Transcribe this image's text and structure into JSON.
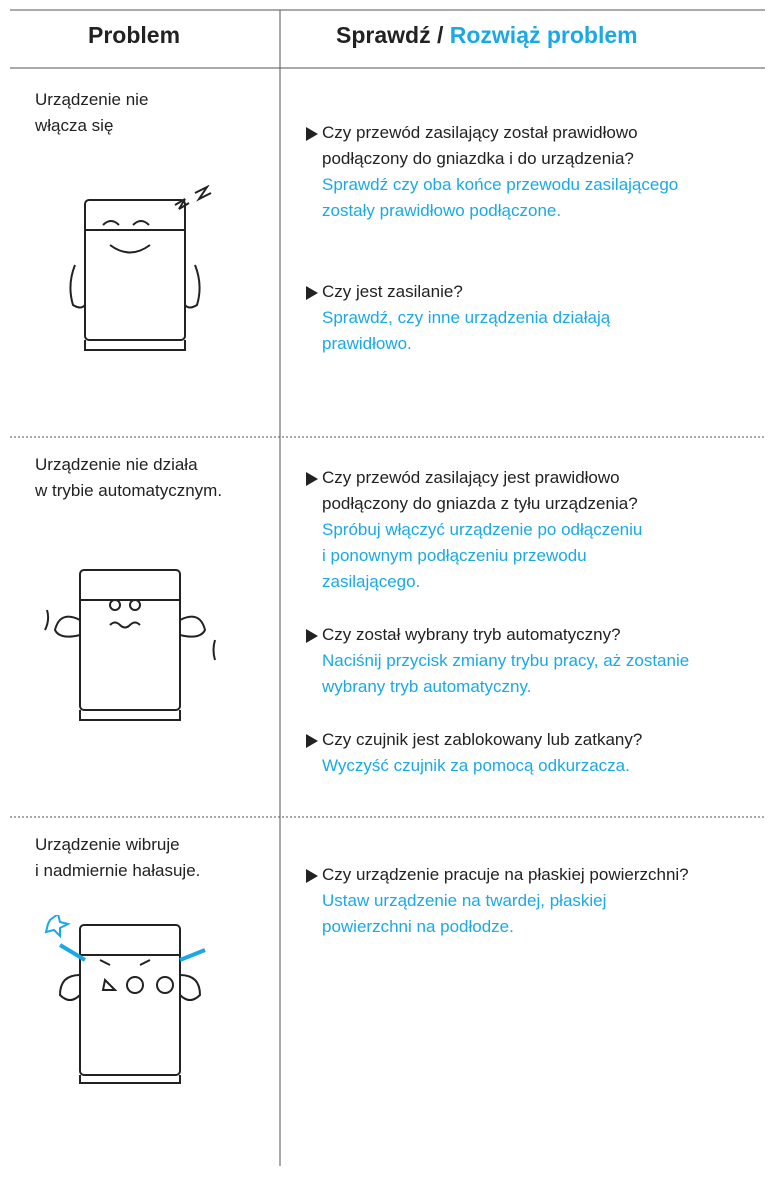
{
  "header": {
    "problem": "Problem",
    "check": "Sprawdź /",
    "solve": "Rozwiąż problem"
  },
  "rows": [
    {
      "problem": [
        "Urządzenie nie",
        "włącza się"
      ],
      "checks": [
        {
          "question": [
            "Czy przewód zasilający został prawidłowo",
            "podłączony do gniazdka i do urządzenia?"
          ],
          "answer": [
            "Sprawdź czy oba końce przewodu zasilającego",
            "zostały prawidłowo podłączone."
          ]
        },
        {
          "question": [
            "Czy jest zasilanie?"
          ],
          "answer": [
            "Sprawdź, czy inne urządzenia działają",
            "prawidłowo."
          ]
        }
      ]
    },
    {
      "problem": [
        "Urządzenie nie działa",
        "w trybie automatycznym."
      ],
      "checks": [
        {
          "question": [
            "Czy przewód zasilający jest prawidłowo",
            "podłączony do gniazda z tyłu urządzenia?"
          ],
          "answer": [
            "Spróbuj włączyć urządzenie po odłączeniu",
            "i ponownym podłączeniu przewodu",
            "zasilającego."
          ]
        },
        {
          "question": [
            "Czy został wybrany tryb automatyczny?"
          ],
          "answer": [
            "Naciśnij przycisk zmiany trybu pracy, aż zostanie",
            "wybrany tryb automatyczny."
          ]
        },
        {
          "question": [
            "Czy czujnik jest zablokowany lub zatkany?"
          ],
          "answer": [
            "Wyczyść czujnik za pomocą odkurzacza."
          ]
        }
      ]
    },
    {
      "problem": [
        "Urządzenie wibruje",
        "i nadmiernie hałasuje."
      ],
      "checks": [
        {
          "question": [
            "Czy urządzenie pracuje na płaskiej powierzchni?"
          ],
          "answer": [
            "Ustaw urządzenie na twardej, płaskiej",
            "powierzchni na podłodze."
          ]
        }
      ]
    }
  ]
}
